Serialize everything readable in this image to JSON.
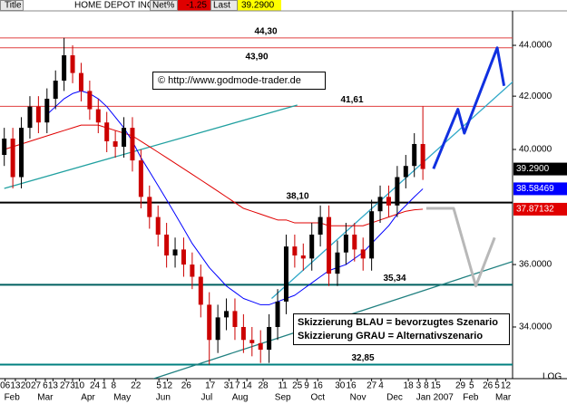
{
  "header": {
    "tab": "Title",
    "name": "HOME DEPOT INC",
    "net_label": "Net%",
    "net": "-1.25",
    "last_label": "Last",
    "last": "39.2900"
  },
  "chart_data": {
    "type": "candlestick",
    "log_scale": true,
    "axis_note": "LOG",
    "up_color": "#000000",
    "down_color": "#cc0000",
    "xlim": [
      -0.5,
      59.5
    ],
    "ylim": [
      32.43,
      45.41
    ],
    "yticks": [
      {
        "value": 34,
        "label": "34.0000"
      },
      {
        "value": 36,
        "label": "36.0000"
      },
      {
        "value": 40,
        "label": "40.0000"
      },
      {
        "value": 42,
        "label": "42.0000"
      },
      {
        "value": 44,
        "label": "44.0000"
      }
    ],
    "xticks": [
      {
        "value": 0.9,
        "label": "Feb"
      },
      {
        "value": 4.8,
        "label": "Mar"
      },
      {
        "value": 9.8,
        "label": "Apr"
      },
      {
        "value": 13.8,
        "label": "May"
      },
      {
        "value": 18.6,
        "label": "Jun"
      },
      {
        "value": 23.7,
        "label": "Jul"
      },
      {
        "value": 27.6,
        "label": "Aug"
      },
      {
        "value": 32.6,
        "label": "Sep"
      },
      {
        "value": 36.7,
        "label": "Oct"
      },
      {
        "value": 41.4,
        "label": "Nov"
      },
      {
        "value": 45.7,
        "label": "Dec"
      },
      {
        "value": 50.4,
        "label": "Jan 2007"
      },
      {
        "value": 54.6,
        "label": "Feb"
      },
      {
        "value": 58.4,
        "label": "Mar"
      }
    ],
    "day_ticks": [
      {
        "value": 0.1,
        "label": "06"
      },
      {
        "value": 1.3,
        "label": "13"
      },
      {
        "value": 2.5,
        "label": "20"
      },
      {
        "value": 3.7,
        "label": "27"
      },
      {
        "value": 4.8,
        "label": "6"
      },
      {
        "value": 5.7,
        "label": "13"
      },
      {
        "value": 7.1,
        "label": "27"
      },
      {
        "value": 8.0,
        "label": "3"
      },
      {
        "value": 8.8,
        "label": "10"
      },
      {
        "value": 10.6,
        "label": "24"
      },
      {
        "value": 11.7,
        "label": "1"
      },
      {
        "value": 12.8,
        "label": "8"
      },
      {
        "value": 15.4,
        "label": "22"
      },
      {
        "value": 18.1,
        "label": "5"
      },
      {
        "value": 19.1,
        "label": "12"
      },
      {
        "value": 21.3,
        "label": "26"
      },
      {
        "value": 24.1,
        "label": "17"
      },
      {
        "value": 26.3,
        "label": "31"
      },
      {
        "value": 27.3,
        "label": "7"
      },
      {
        "value": 28.4,
        "label": "14"
      },
      {
        "value": 30.3,
        "label": "28"
      },
      {
        "value": 32.6,
        "label": "11"
      },
      {
        "value": 34.3,
        "label": "25"
      },
      {
        "value": 35.4,
        "label": "9"
      },
      {
        "value": 36.7,
        "label": "16"
      },
      {
        "value": 39.3,
        "label": "30"
      },
      {
        "value": 40.6,
        "label": "16"
      },
      {
        "value": 43.0,
        "label": "27"
      },
      {
        "value": 44.1,
        "label": "4"
      },
      {
        "value": 47.3,
        "label": "18"
      },
      {
        "value": 48.5,
        "label": "3"
      },
      {
        "value": 49.4,
        "label": "8"
      },
      {
        "value": 50.5,
        "label": "15"
      },
      {
        "value": 53.4,
        "label": "29"
      },
      {
        "value": 54.7,
        "label": "5"
      },
      {
        "value": 56.6,
        "label": "26"
      },
      {
        "value": 57.7,
        "label": "5"
      },
      {
        "value": 58.7,
        "label": "12"
      }
    ],
    "x": [
      0,
      1,
      2,
      3,
      4,
      5,
      6,
      7,
      8,
      9,
      10,
      11,
      12,
      13,
      14,
      15,
      16,
      17,
      18,
      19,
      20,
      21,
      22,
      23,
      24,
      25,
      26,
      27,
      28,
      29,
      30,
      31,
      32,
      33,
      34,
      35,
      36,
      37,
      38,
      39,
      40,
      41,
      42,
      43,
      44,
      45,
      46,
      47,
      48,
      49
    ],
    "open": [
      39.8,
      40.4,
      39.0,
      40.8,
      41.6,
      41.0,
      41.9,
      42.6,
      43.6,
      42.9,
      42.2,
      41.5,
      41.0,
      40.3,
      40.1,
      40.8,
      39.6,
      38.3,
      37.6,
      37.0,
      36.3,
      36.5,
      36.0,
      35.6,
      34.7,
      33.6,
      34.3,
      34.5,
      34.0,
      33.6,
      33.5,
      33.3,
      34.0,
      34.8,
      36.6,
      36.3,
      36.2,
      37.0,
      37.6,
      35.7,
      36.4,
      37.0,
      36.5,
      36.2,
      37.8,
      38.3,
      38.0,
      39.0,
      39.4,
      40.2
    ],
    "high": [
      40.8,
      40.8,
      41.2,
      42.0,
      42.0,
      42.3,
      43.0,
      44.3,
      44.0,
      43.3,
      42.6,
      41.9,
      41.4,
      40.7,
      41.2,
      41.2,
      40.0,
      38.7,
      38.0,
      37.4,
      36.9,
      36.9,
      36.4,
      36.0,
      35.1,
      34.7,
      34.9,
      34.9,
      34.4,
      34.0,
      33.9,
      34.4,
      35.2,
      37.0,
      37.0,
      36.7,
      37.4,
      38.0,
      38.0,
      36.8,
      37.4,
      37.4,
      36.9,
      38.2,
      38.7,
      38.7,
      39.4,
      39.8,
      40.6,
      41.61
    ],
    "low": [
      39.4,
      38.6,
      38.6,
      40.4,
      40.6,
      40.6,
      41.5,
      42.2,
      42.5,
      41.8,
      41.1,
      40.6,
      39.9,
      39.7,
      39.7,
      39.2,
      37.9,
      37.2,
      36.6,
      35.9,
      35.9,
      35.6,
      35.2,
      34.3,
      32.85,
      33.2,
      33.9,
      33.6,
      33.2,
      33.1,
      32.9,
      32.9,
      33.6,
      34.4,
      35.9,
      35.8,
      35.8,
      36.6,
      35.3,
      35.3,
      36.0,
      36.1,
      35.8,
      35.8,
      37.4,
      37.6,
      37.6,
      38.6,
      39.0,
      38.9
    ],
    "close": [
      40.4,
      39.0,
      40.8,
      41.6,
      41.0,
      41.9,
      42.6,
      43.6,
      42.9,
      42.2,
      41.5,
      41.0,
      40.3,
      40.1,
      40.8,
      39.6,
      38.3,
      37.6,
      37.0,
      36.3,
      36.5,
      36.0,
      35.6,
      34.7,
      33.6,
      34.3,
      34.5,
      34.0,
      33.6,
      33.5,
      33.3,
      34.0,
      34.8,
      36.6,
      36.3,
      36.2,
      37.0,
      37.6,
      35.7,
      36.4,
      37.0,
      36.5,
      36.2,
      37.8,
      38.3,
      38.0,
      39.0,
      39.4,
      40.2,
      39.29
    ],
    "overlays": [
      {
        "color": "#e00000",
        "values": [
          40.0,
          40.1,
          40.2,
          40.3,
          40.4,
          40.5,
          40.6,
          40.7,
          40.8,
          40.9,
          40.9,
          40.9,
          40.8,
          40.7,
          40.6,
          40.5,
          40.3,
          40.1,
          39.9,
          39.7,
          39.5,
          39.3,
          39.1,
          38.9,
          38.7,
          38.5,
          38.3,
          38.1,
          37.9,
          37.8,
          37.7,
          37.6,
          37.5,
          37.5,
          37.4,
          37.4,
          37.4,
          37.4,
          37.3,
          37.3,
          37.3,
          37.3,
          37.3,
          37.4,
          37.5,
          37.6,
          37.7,
          37.8,
          37.85,
          37.87132
        ]
      },
      {
        "color": "#0000ff",
        "values": [
          null,
          null,
          null,
          null,
          null,
          41.3,
          41.6,
          41.9,
          42.1,
          42.2,
          42.1,
          41.9,
          41.6,
          41.2,
          40.8,
          40.3,
          39.7,
          39.2,
          38.7,
          38.2,
          37.7,
          37.2,
          36.7,
          36.3,
          35.9,
          35.6,
          35.3,
          35.1,
          34.9,
          34.8,
          34.7,
          34.7,
          34.8,
          34.9,
          35.0,
          35.2,
          35.4,
          35.6,
          35.8,
          35.9,
          36.0,
          36.2,
          36.4,
          36.7,
          37.0,
          37.3,
          37.7,
          38.0,
          38.3,
          38.58469
        ]
      }
    ],
    "levels": [
      {
        "value": 44.3,
        "label": "44,30",
        "color": "#e04040"
      },
      {
        "value": 43.9,
        "label": "43,90",
        "color": "#e04040"
      },
      {
        "value": 41.61,
        "label": "41,61",
        "color": "#e04040"
      },
      {
        "value": 38.1,
        "label": "38,10",
        "color": "#000000"
      },
      {
        "value": 35.34,
        "label": "35,34",
        "color": "#006060"
      },
      {
        "value": 32.85,
        "label": "32,85",
        "color": "#008080"
      }
    ],
    "trendlines": [
      {
        "color": "#20a0a0",
        "points": [
          [
            0,
            38.6
          ],
          [
            34.3,
            41.66
          ]
        ]
      },
      {
        "color": "#208080",
        "points": [
          [
            17.5,
            32.43
          ],
          [
            59.5,
            36.1
          ]
        ]
      },
      {
        "color": "#30a8c8",
        "points": [
          [
            31.3,
            34.9
          ],
          [
            60,
            42.7
          ]
        ]
      }
    ],
    "scenarios": [
      {
        "color": "#1030e0",
        "x": [
          50.24,
          53.1,
          53.85,
          57.7,
          58.5
        ],
        "values": [
          39.3,
          41.5,
          40.6,
          43.9,
          42.4
        ]
      },
      {
        "color": "#b8b8b8",
        "x": [
          49.4,
          52.6,
          55.2,
          57.4
        ],
        "values": [
          37.9,
          37.9,
          35.3,
          36.9
        ]
      }
    ],
    "last_labels": [
      {
        "value": 39.29,
        "label": "39.2900",
        "color": "#000000"
      },
      {
        "value": 38.58469,
        "label": "38.58469",
        "color": "#0000ff"
      },
      {
        "value": 37.87132,
        "label": "37.87132",
        "color": "#e00000"
      }
    ],
    "annotation": "© http://www.godmode-trader.de",
    "legend_box": [
      "Skizzierung BLAU = bevorzugtes Szenario",
      "Skizzierung GRAU = Alternativszenario"
    ]
  }
}
